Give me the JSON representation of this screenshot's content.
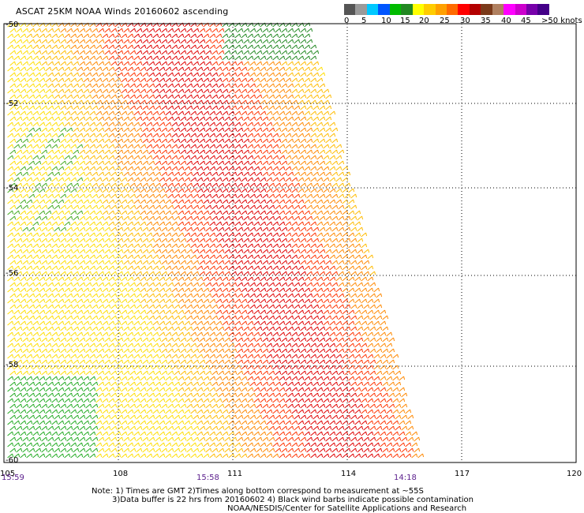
{
  "title": "ASCAT 25KM NOAA Winds 20160602 ascending",
  "legend": {
    "colors": [
      "#555555",
      "#9a9a9a",
      "#00c8ff",
      "#0055ff",
      "#00bb00",
      "#228822",
      "#ffff00",
      "#ffcc00",
      "#ffa000",
      "#ff6a00",
      "#ff0000",
      "#b30000",
      "#7a3a1a",
      "#b08060",
      "#ff00ff",
      "#cc00cc",
      "#7700aa",
      "#440088"
    ],
    "labels": [
      "0",
      "5",
      "10",
      "15",
      "20",
      "25",
      "30",
      "35",
      "40",
      "45",
      ">50 knots"
    ]
  },
  "axes": {
    "lon_ticks": [
      "105",
      "108",
      "111",
      "114",
      "117",
      "120"
    ],
    "lat_ticks": [
      "-50",
      "-52",
      "-54",
      "-56",
      "-58",
      "-60"
    ]
  },
  "times": [
    "15:59",
    "15:58",
    "14:18"
  ],
  "notes": [
    "Note: 1) Times are GMT 2)Times along bottom correspond to measurement at ~55S",
    "3)Data buffer is 22 hrs from 20160602 4) Black wind barbs indicate possible contamination",
    "NOAA/NESDIS/Center for Satellite Applications and Research"
  ]
}
